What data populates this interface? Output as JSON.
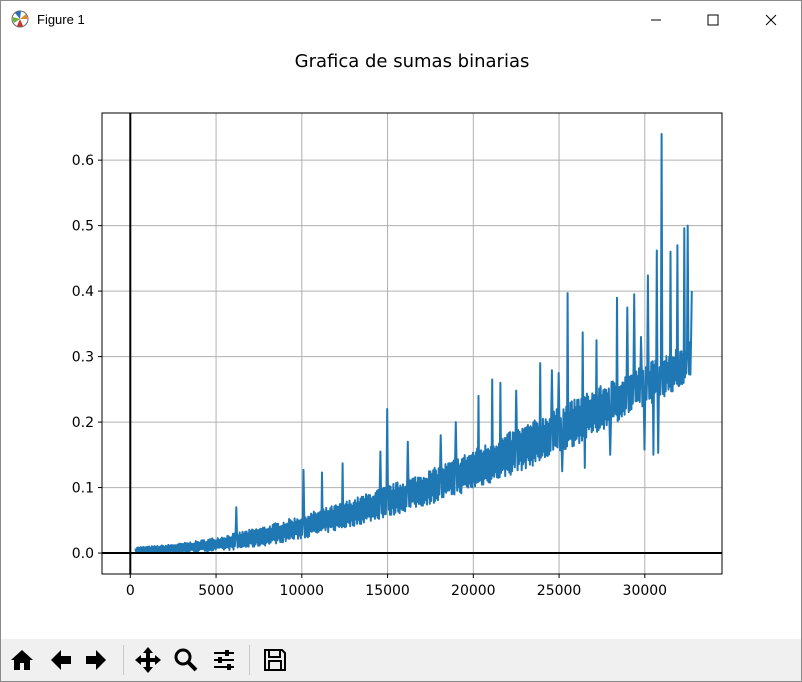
{
  "window": {
    "title": "Figure 1",
    "icons": [
      "matplotlib-logo-icon",
      "minimize-icon",
      "maximize-icon",
      "close-icon"
    ]
  },
  "toolbar": {
    "buttons": [
      "home-icon",
      "back-arrow-icon",
      "forward-arrow-icon",
      "pan-move-icon",
      "zoom-magnifier-icon",
      "configure-subplots-icon",
      "save-disk-icon"
    ]
  },
  "colors": {
    "line": "#1f77b4",
    "grid": "#b0b0b0",
    "toolbar_bg": "#f0f0f0"
  },
  "chart_data": {
    "type": "line",
    "title": "Grafica de sumas binarias",
    "xlabel": "",
    "ylabel": "",
    "xlim": [
      -1650,
      34500
    ],
    "ylim": [
      -0.032,
      0.672
    ],
    "xticks": [
      0,
      5000,
      10000,
      15000,
      20000,
      25000,
      30000
    ],
    "xtick_labels": [
      "0",
      "5000",
      "10000",
      "15000",
      "20000",
      "25000",
      "30000"
    ],
    "yticks": [
      0.0,
      0.1,
      0.2,
      0.3,
      0.4,
      0.5,
      0.6
    ],
    "ytick_labels": [
      "0.0",
      "0.1",
      "0.2",
      "0.3",
      "0.4",
      "0.5",
      "0.6"
    ],
    "grid": true,
    "reference_lines": {
      "x": 0,
      "y": 0
    },
    "series": [
      {
        "upper": [
          [
            300,
            0.009
          ],
          [
            1000,
            0.01
          ],
          [
            2000,
            0.012
          ],
          [
            3000,
            0.015
          ],
          [
            4000,
            0.019
          ],
          [
            5000,
            0.024
          ],
          [
            6000,
            0.03
          ],
          [
            7000,
            0.036
          ],
          [
            8000,
            0.042
          ],
          [
            9000,
            0.05
          ],
          [
            10000,
            0.058
          ],
          [
            11000,
            0.066
          ],
          [
            12000,
            0.074
          ],
          [
            13000,
            0.083
          ],
          [
            14000,
            0.093
          ],
          [
            15000,
            0.103
          ],
          [
            16000,
            0.112
          ],
          [
            17000,
            0.122
          ],
          [
            18000,
            0.133
          ],
          [
            19000,
            0.145
          ],
          [
            20000,
            0.158
          ],
          [
            21000,
            0.17
          ],
          [
            22000,
            0.183
          ],
          [
            23000,
            0.196
          ],
          [
            24000,
            0.208
          ],
          [
            25000,
            0.222
          ],
          [
            26000,
            0.236
          ],
          [
            27000,
            0.25
          ],
          [
            28000,
            0.262
          ],
          [
            29000,
            0.275
          ],
          [
            30000,
            0.288
          ],
          [
            31000,
            0.3
          ],
          [
            32000,
            0.315
          ],
          [
            32768,
            0.33
          ]
        ],
        "lower": [
          [
            300,
            0.0
          ],
          [
            1000,
            0.0
          ],
          [
            2000,
            0.0
          ],
          [
            3000,
            0.001
          ],
          [
            4000,
            0.002
          ],
          [
            5000,
            0.003
          ],
          [
            6000,
            0.005
          ],
          [
            7000,
            0.008
          ],
          [
            8000,
            0.012
          ],
          [
            9000,
            0.017
          ],
          [
            10000,
            0.022
          ],
          [
            11000,
            0.028
          ],
          [
            12000,
            0.034
          ],
          [
            13000,
            0.041
          ],
          [
            14000,
            0.048
          ],
          [
            15000,
            0.055
          ],
          [
            16000,
            0.063
          ],
          [
            17000,
            0.071
          ],
          [
            18000,
            0.079
          ],
          [
            19000,
            0.088
          ],
          [
            20000,
            0.097
          ],
          [
            21000,
            0.107
          ],
          [
            22000,
            0.117
          ],
          [
            23000,
            0.128
          ],
          [
            24000,
            0.139
          ],
          [
            25000,
            0.151
          ],
          [
            26000,
            0.165
          ],
          [
            27000,
            0.18
          ],
          [
            28000,
            0.195
          ],
          [
            29000,
            0.21
          ],
          [
            30000,
            0.223
          ],
          [
            31000,
            0.237
          ],
          [
            32000,
            0.252
          ],
          [
            32768,
            0.265
          ]
        ],
        "spikes": [
          [
            6200,
            0.07
          ],
          [
            10100,
            0.127
          ],
          [
            11200,
            0.123
          ],
          [
            12400,
            0.137
          ],
          [
            14600,
            0.155
          ],
          [
            15000,
            0.22
          ],
          [
            16200,
            0.17
          ],
          [
            18100,
            0.18
          ],
          [
            19000,
            0.2
          ],
          [
            20300,
            0.24
          ],
          [
            21100,
            0.265
          ],
          [
            21600,
            0.26
          ],
          [
            22500,
            0.248
          ],
          [
            23900,
            0.29
          ],
          [
            24600,
            0.279
          ],
          [
            25000,
            0.275
          ],
          [
            25500,
            0.397
          ],
          [
            26400,
            0.337
          ],
          [
            27200,
            0.325
          ],
          [
            28400,
            0.39
          ],
          [
            29000,
            0.375
          ],
          [
            29400,
            0.395
          ],
          [
            29800,
            0.33
          ],
          [
            30200,
            0.424
          ],
          [
            30700,
            0.462
          ],
          [
            31000,
            0.64
          ],
          [
            31500,
            0.46
          ],
          [
            31900,
            0.47
          ],
          [
            32300,
            0.496
          ],
          [
            32500,
            0.5
          ],
          [
            32768,
            0.4
          ]
        ],
        "dips": [
          [
            25200,
            0.125
          ],
          [
            26500,
            0.13
          ],
          [
            28000,
            0.15
          ],
          [
            30000,
            0.158
          ],
          [
            30500,
            0.15
          ],
          [
            30800,
            0.153
          ],
          [
            31300,
            0.26
          ],
          [
            32000,
            0.255
          ]
        ]
      }
    ]
  }
}
